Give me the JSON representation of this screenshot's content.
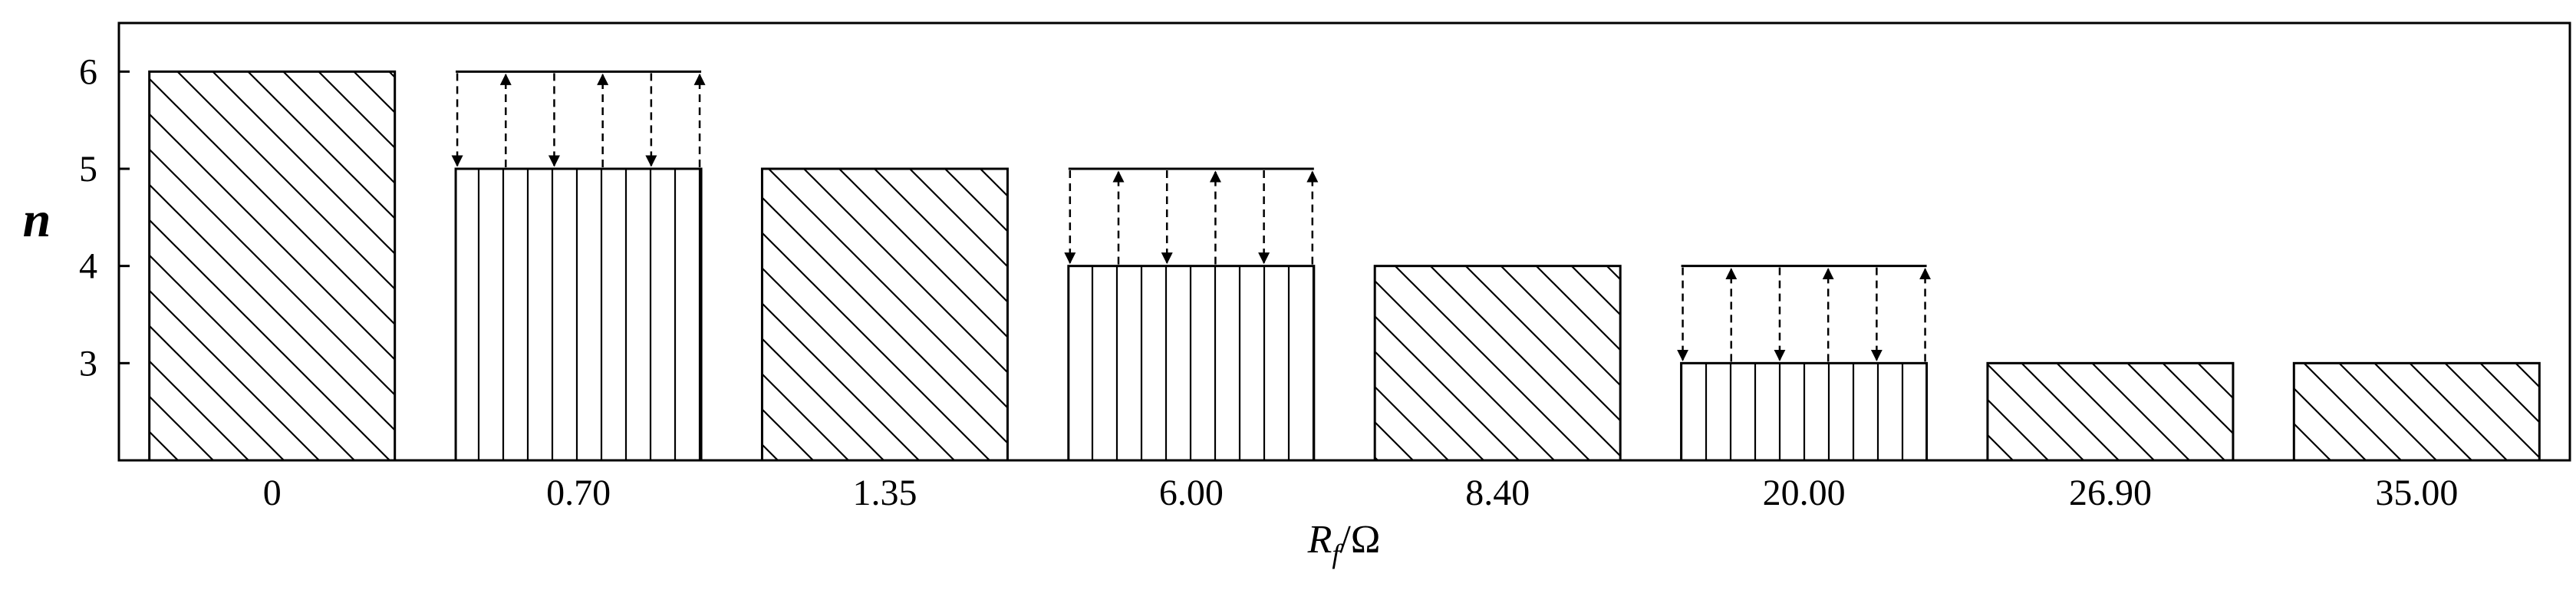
{
  "chart_data": {
    "type": "bar",
    "categories": [
      "0",
      "0.70",
      "1.35",
      "6.00",
      "8.40",
      "20.00",
      "26.90",
      "35.00"
    ],
    "values": [
      6,
      5,
      5,
      4,
      4,
      3,
      3,
      3
    ],
    "hatch": [
      "diagonal",
      "vertical",
      "diagonal",
      "vertical",
      "diagonal",
      "vertical",
      "diagonal",
      "diagonal"
    ],
    "switching": [
      {
        "category": "0.70",
        "low": 5,
        "high": 6
      },
      {
        "category": "6.00",
        "low": 4,
        "high": 5
      },
      {
        "category": "20.00",
        "low": 3,
        "high": 4
      }
    ],
    "ylim": [
      2,
      6.5
    ],
    "yticks": [
      3,
      4,
      5,
      6
    ],
    "ylabel": "n",
    "xlabel": {
      "main": "R",
      "sub": "f",
      "unit": "/Ω"
    },
    "grid": false,
    "legend": "none"
  }
}
